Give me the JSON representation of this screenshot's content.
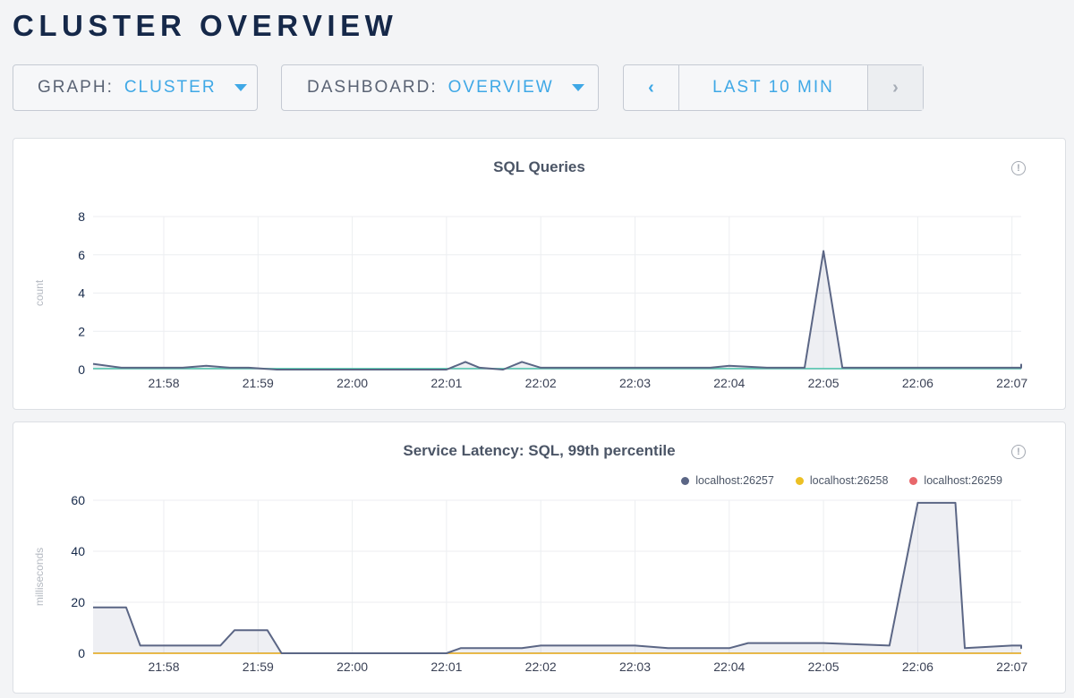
{
  "page": {
    "title": "CLUSTER OVERVIEW"
  },
  "controls": {
    "graph": {
      "label": "GRAPH:",
      "value": "CLUSTER"
    },
    "dashboard": {
      "label": "DASHBOARD:",
      "value": "OVERVIEW"
    },
    "time_range": {
      "prev_icon": "chevron-left-icon",
      "label": "LAST 10 MIN",
      "next_icon": "chevron-right-icon"
    }
  },
  "colors": {
    "title": "#152849",
    "accent": "#3fa8e6",
    "series_26257": "#5b6685",
    "series_26258": "#ecc024",
    "series_26259": "#e8676b",
    "zero_line_teal": "#4fd1b0",
    "grid": "#eceef1"
  },
  "chart_data": [
    {
      "type": "area",
      "title": "SQL Queries",
      "ylabel": "count",
      "xlabel": "",
      "ylim": [
        0,
        8
      ],
      "yticks": [
        0,
        2,
        4,
        6,
        8
      ],
      "grid": true,
      "xticks": [
        "21:58",
        "21:59",
        "22:00",
        "22:01",
        "22:02",
        "22:03",
        "22:04",
        "22:05",
        "22:06",
        "22:07"
      ],
      "x_minutes_from_2158": [
        -0.75,
        -0.45,
        -0.2,
        0.0,
        0.2,
        0.45,
        0.7,
        0.9,
        1.2,
        2.0,
        2.8,
        3.0,
        3.2,
        3.35,
        3.6,
        3.8,
        4.0,
        4.5,
        5.0,
        5.5,
        5.8,
        6.0,
        6.4,
        6.8,
        7.0,
        7.2,
        8.0,
        9.0,
        9.5,
        9.75
      ],
      "series": [
        {
          "name": "localhost:26257",
          "color": "#5b6685",
          "values": [
            0.3,
            0.1,
            0.1,
            0.1,
            0.1,
            0.2,
            0.1,
            0.1,
            0.0,
            0.0,
            0.0,
            0.0,
            0.4,
            0.1,
            0.0,
            0.4,
            0.1,
            0.1,
            0.1,
            0.1,
            0.1,
            0.2,
            0.1,
            0.1,
            6.2,
            0.1,
            0.1,
            0.1,
            0.1,
            0.3
          ]
        },
        {
          "color": "#4fd1b0",
          "values": [
            0.05,
            0.05,
            0.05,
            0.05,
            0.05,
            0.05,
            0.05,
            0.05,
            0.05,
            0.05,
            0.05,
            0.05,
            0.05,
            0.05,
            0.05,
            0.05,
            0.05,
            0.05,
            0.05,
            0.05,
            0.05,
            0.05,
            0.05,
            0.05,
            0.05,
            0.05,
            0.05,
            0.05,
            0.05,
            0.05
          ]
        }
      ]
    },
    {
      "type": "area",
      "title": "Service Latency: SQL, 99th percentile",
      "ylabel": "milliseconds",
      "xlabel": "",
      "ylim": [
        0,
        60
      ],
      "yticks": [
        0,
        20,
        40,
        60
      ],
      "grid": true,
      "legend_placement": "top-right",
      "xticks": [
        "21:58",
        "21:59",
        "22:00",
        "22:01",
        "22:02",
        "22:03",
        "22:04",
        "22:05",
        "22:06",
        "22:07"
      ],
      "x_minutes_from_2158": [
        -0.75,
        -0.4,
        -0.25,
        0.0,
        0.3,
        0.6,
        0.75,
        1.1,
        1.25,
        2.0,
        3.0,
        3.15,
        3.5,
        3.8,
        4.0,
        4.3,
        4.5,
        5.0,
        5.35,
        5.6,
        6.0,
        6.2,
        6.6,
        6.85,
        7.0,
        7.7,
        8.0,
        8.15,
        8.4,
        8.5,
        9.0,
        9.3,
        9.5,
        9.75
      ],
      "series": [
        {
          "name": "localhost:26257",
          "color": "#5b6685",
          "values": [
            18,
            18,
            3,
            3,
            3,
            3,
            9,
            9,
            0,
            0,
            0,
            2,
            2,
            2,
            3,
            3,
            3,
            3,
            2,
            2,
            2,
            4,
            4,
            4,
            4,
            3,
            59,
            59,
            59,
            2,
            3,
            3,
            2,
            2.5
          ]
        },
        {
          "name": "localhost:26258",
          "color": "#ecc024",
          "values": [
            0,
            0,
            0,
            0,
            0,
            0,
            0,
            0,
            0,
            0,
            0,
            0,
            0,
            0,
            0,
            0,
            0,
            0,
            0,
            0,
            0,
            0,
            0,
            0,
            0,
            0,
            0,
            0,
            0,
            0,
            0,
            0,
            0,
            0
          ]
        },
        {
          "name": "localhost:26259",
          "color": "#e8676b",
          "values": [
            0,
            0,
            0,
            0,
            0,
            0,
            0,
            0,
            0,
            0,
            0,
            0,
            0,
            0,
            0,
            0,
            0,
            0,
            0,
            0,
            0,
            0,
            0,
            0,
            0,
            0,
            0,
            0,
            0,
            0,
            0,
            0,
            0,
            0
          ]
        }
      ]
    }
  ],
  "legend": [
    {
      "name": "localhost:26257",
      "color": "#5b6685"
    },
    {
      "name": "localhost:26258",
      "color": "#ecc024"
    },
    {
      "name": "localhost:26259",
      "color": "#e8676b"
    }
  ]
}
